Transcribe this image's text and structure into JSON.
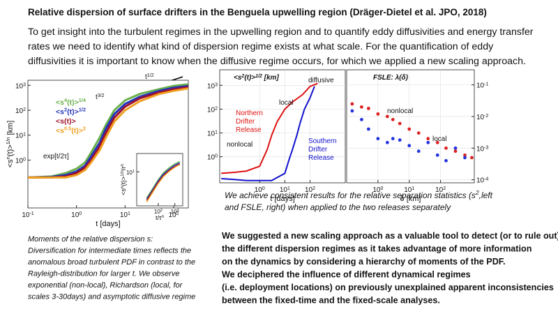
{
  "header": {
    "title": "Relative dispersion of surface drifters in the Benguela upwelling region (Dräger-Dietel et al.  JPO, 2018)"
  },
  "intro": [
    "To get insight into the turbulent regimes in the upwelling region and to quantify eddy diffusivities and energy transfer",
    "rates we need to identify what kind of dispersion regime  exists at what scale. For the quantification of eddy",
    "diffusivities it is important to know when the diffusive regime occurs, for which we applied a new scaling approach."
  ],
  "figures": {
    "dispersion": {
      "type": "line",
      "log": true,
      "xlim": [
        0.1,
        200
      ],
      "ylim": [
        0.012,
        1600
      ],
      "xticks": [
        {
          "value": 0.1,
          "label": [
            "10",
            "-1"
          ]
        },
        {
          "value": 1,
          "label": [
            "10",
            "0"
          ]
        },
        {
          "value": 10,
          "label": [
            "10",
            "1"
          ]
        },
        {
          "value": 100,
          "label": [
            "10",
            "2"
          ]
        }
      ],
      "yticks": [
        {
          "value": 1,
          "label": [
            "10",
            "0"
          ]
        },
        {
          "value": 10,
          "label": [
            "10",
            "1"
          ]
        },
        {
          "value": 100,
          "label": [
            "10",
            "2"
          ]
        },
        {
          "value": 1000,
          "label": [
            "10",
            "3"
          ]
        }
      ],
      "xlabel": [
        "t [days]"
      ],
      "ylabel": [
        "<s",
        "n",
        "(t)>",
        "1/n",
        " [km]"
      ],
      "x": [
        0.1,
        0.3,
        0.6,
        1,
        1.5,
        2,
        3,
        4,
        6,
        10,
        20,
        50,
        100,
        200
      ],
      "series": [
        {
          "name": [
            "<s",
            "4",
            "(t)>",
            "1/4"
          ],
          "color": "#6ab04c",
          "values": [
            0.2,
            0.22,
            0.3,
            0.45,
            0.8,
            2,
            8,
            25,
            100,
            250,
            450,
            700,
            950,
            1100
          ]
        },
        {
          "name": [
            "<s",
            "2",
            "(t)>",
            "1/2"
          ],
          "color": "#2233bb",
          "values": [
            0.2,
            0.21,
            0.25,
            0.35,
            0.6,
            1.4,
            5,
            18,
            70,
            180,
            350,
            600,
            800,
            950
          ]
        },
        {
          "name": [
            "<s(t)>"
          ],
          "color": "#a0102a",
          "values": [
            0.2,
            0.2,
            0.22,
            0.3,
            0.5,
            1,
            3.5,
            12,
            50,
            140,
            300,
            520,
            700,
            850
          ]
        },
        {
          "name": [
            "<s",
            "0.5",
            "(t)>",
            "2"
          ],
          "color": "#f0a020",
          "values": [
            0.2,
            0.2,
            0.2,
            0.25,
            0.4,
            0.8,
            2.5,
            8,
            35,
            100,
            230,
            450,
            600,
            750
          ]
        }
      ],
      "annotations": [
        [
          "exp[t/2τ]"
        ],
        [
          "t",
          "3/2"
        ],
        [
          "t",
          "1/2"
        ]
      ]
    },
    "inset": {
      "type": "line",
      "log": true,
      "xlim": [
        5,
        3000
      ],
      "ylim": [
        0.5,
        50
      ],
      "xticks": [
        {
          "value": 100,
          "label": [
            "10",
            "2"
          ]
        },
        {
          "value": 1000,
          "label": [
            "10",
            "3"
          ]
        }
      ],
      "yticks": [
        {
          "value": 10,
          "label": [
            "10",
            "1"
          ]
        }
      ],
      "xlabel": [
        "t/τ",
        "n"
      ],
      "ylabel": [
        "<s",
        "n",
        "(t)>",
        "1/n",
        "/r",
        "n"
      ],
      "x": [
        20,
        50,
        100,
        200,
        500,
        1000,
        2000
      ],
      "series": [
        {
          "color": "#6ab04c",
          "values": [
            1,
            2.5,
            5,
            9,
            15,
            20,
            25
          ]
        },
        {
          "color": "#2233bb",
          "values": [
            0.9,
            2.2,
            4.5,
            8,
            13,
            18,
            22
          ]
        },
        {
          "color": "#a0102a",
          "values": [
            0.8,
            2,
            4,
            7,
            12,
            16,
            20
          ]
        },
        {
          "color": "#f0a020",
          "values": [
            0.7,
            1.8,
            3.6,
            6.5,
            11,
            15,
            19
          ]
        }
      ]
    },
    "drifters": {
      "type": "line",
      "log": true,
      "grid": true,
      "xlim": [
        0.026,
        2500
      ],
      "ylim": [
        0.08,
        4500
      ],
      "xticks": [
        {
          "value": 1,
          "label": [
            "10",
            "0"
          ]
        },
        {
          "value": 10,
          "label": [
            "10",
            "1"
          ]
        },
        {
          "value": 100,
          "label": [
            "10",
            "2"
          ]
        }
      ],
      "yticks": [
        {
          "value": 1,
          "label": [
            "10",
            "0"
          ]
        },
        {
          "value": 10,
          "label": [
            "10",
            "1"
          ]
        },
        {
          "value": 100,
          "label": [
            "10",
            "2"
          ]
        },
        {
          "value": 1000,
          "label": [
            "10",
            "3"
          ]
        }
      ],
      "title": [
        "<s",
        "2",
        "(t)>",
        "1/2",
        " [km]"
      ],
      "xlabel": [
        "t [days]"
      ],
      "series": [
        {
          "color": "#dd1111",
          "x": [
            0.03,
            0.1,
            0.3,
            1,
            2,
            3,
            5,
            10,
            20,
            50,
            100,
            200
          ],
          "values": [
            0.2,
            0.22,
            0.25,
            0.4,
            2,
            8,
            30,
            100,
            200,
            400,
            900,
            1200
          ]
        },
        {
          "color": "#1111cc",
          "x": [
            0.03,
            0.1,
            0.3,
            1,
            3,
            10,
            15,
            20,
            30,
            40,
            60,
            100,
            150
          ],
          "values": [
            0.12,
            0.11,
            0.1,
            0.1,
            0.1,
            0.2,
            0.8,
            2,
            8,
            25,
            100,
            300,
            900
          ]
        }
      ],
      "annotations": [
        [
          "local"
        ],
        [
          "diffusive"
        ],
        [
          "Northern"
        ],
        [
          "Drifter"
        ],
        [
          "Release"
        ],
        [
          "Southern"
        ],
        [
          "Drifter"
        ],
        [
          "Release"
        ],
        [
          "nonlocal"
        ]
      ]
    },
    "fsle": {
      "type": "scatter",
      "log": true,
      "grid": true,
      "yside": "right",
      "xlim": [
        0.1,
        1200
      ],
      "ylim": [
        8e-05,
        0.3
      ],
      "xticks": [
        {
          "value": 1,
          "label": [
            "10",
            "0"
          ]
        },
        {
          "value": 10,
          "label": [
            "10",
            "1"
          ]
        },
        {
          "value": 100,
          "label": [
            "10",
            "2"
          ]
        }
      ],
      "yticks": [
        {
          "value": 0.1,
          "label": [
            "10",
            "-1"
          ]
        },
        {
          "value": 0.01,
          "label": [
            "10",
            "-2"
          ]
        },
        {
          "value": 0.001,
          "label": [
            "10",
            "-3"
          ]
        },
        {
          "value": 0.0001,
          "label": [
            "10",
            "-4"
          ]
        }
      ],
      "title": [
        "FSLE:  λ(δ)"
      ],
      "xlabel": [
        "δ [km]"
      ],
      "series": [
        {
          "color": "#dd2222",
          "x": [
            0.15,
            0.3,
            0.5,
            1,
            2,
            3,
            5,
            10,
            20,
            40,
            80,
            150,
            300,
            600,
            1000
          ],
          "values": [
            0.025,
            0.02,
            0.018,
            0.012,
            0.01,
            0.008,
            0.006,
            0.004,
            0.003,
            0.002,
            0.0015,
            0.001,
            0.0008,
            0.0006,
            0.0005
          ]
        },
        {
          "color": "#2233dd",
          "x": [
            0.15,
            0.3,
            0.5,
            1,
            2,
            3,
            5,
            10,
            20,
            40,
            80,
            150,
            300,
            600
          ],
          "values": [
            0.015,
            0.008,
            0.004,
            0.002,
            0.0015,
            0.002,
            0.0018,
            0.0012,
            0.0008,
            0.0015,
            0.0006,
            0.0004,
            0.001,
            0.0005
          ]
        }
      ],
      "annotations": [
        [
          "nonlocal"
        ],
        [
          "local"
        ]
      ]
    }
  },
  "mid_caption": [
    [
      "We achieve consistent results for the relative separation statistics (s",
      "2",
      ",left"
    ],
    [
      "and FSLE, right) when applied to the two releases separately"
    ]
  ],
  "left_caption": [
    "Moments of the relative dispersion s:",
    "Diversification for intermediate times  reflects the",
    "anomalous broad turbulent PDF in contrast to the",
    "Rayleigh-distribution for larger t. We observe",
    "exponential (non-local), Richardson (local, for",
    "scales 3-30days) and asymptotic diffusive regime"
  ],
  "conclusion": [
    "We suggested a new scaling approach as a valuable tool to detect (or to rule out)",
    " the different dispersion regimes as it takes advantage of more information",
    "on the dynamics by considering a hierarchy of moments of the PDF.",
    "We deciphered the influence of different dynamical  regimes",
    "(i.e. deployment locations) on previously unexplained apparent inconsistencies",
    "between the fixed-time and the fixed-scale analyses."
  ]
}
